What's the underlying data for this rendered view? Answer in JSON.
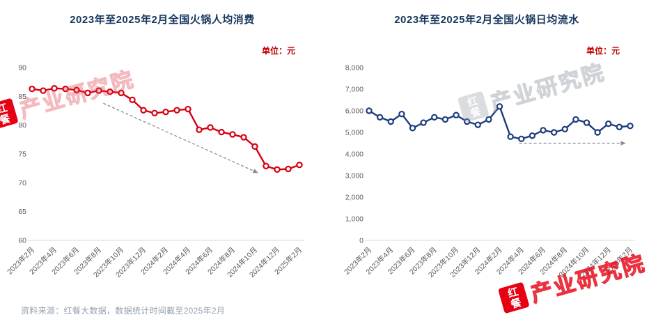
{
  "page": {
    "source_note": "资料来源：红餐大数据，数据统计时间截至2025年2月"
  },
  "watermark": {
    "badge": "红餐",
    "text": "产业研究院"
  },
  "chart_data": [
    {
      "type": "line",
      "title": "2023年至2025年2月全国火锅人均消费",
      "unit_label": "单位：元",
      "line_color": "#d7000f",
      "ylim": [
        60,
        90
      ],
      "yticks": [
        60,
        65,
        70,
        75,
        80,
        85,
        90
      ],
      "ytick_labels": [
        "60",
        "65",
        "70",
        "75",
        "80",
        "85",
        "90"
      ],
      "x": [
        "2023年2月",
        "2023年3月",
        "2023年4月",
        "2023年5月",
        "2023年6月",
        "2023年7月",
        "2023年8月",
        "2023年9月",
        "2023年10月",
        "2023年11月",
        "2023年12月",
        "2024年1月",
        "2024年2月",
        "2024年3月",
        "2024年4月",
        "2024年5月",
        "2024年6月",
        "2024年7月",
        "2024年8月",
        "2024年9月",
        "2024年10月",
        "2024年11月",
        "2024年12月",
        "2025年1月",
        "2025年2月"
      ],
      "x_tick_labels": [
        "2023年2月",
        "2023年4月",
        "2023年6月",
        "2023年8月",
        "2023年10月",
        "2023年12月",
        "2024年2月",
        "2024年4月",
        "2024年6月",
        "2024年8月",
        "2024年10月",
        "2024年12月",
        "2025年2月"
      ],
      "values": [
        86.3,
        86.0,
        86.4,
        86.3,
        86.1,
        85.6,
        86.0,
        85.8,
        85.6,
        84.4,
        82.6,
        82.1,
        82.3,
        82.6,
        82.8,
        79.2,
        79.6,
        78.8,
        78.4,
        77.9,
        76.3,
        72.9,
        72.3,
        72.4,
        73.1
      ],
      "grid": false,
      "legend": "none",
      "trend_arrow": {
        "from_index": 6.4,
        "from_value": 83.8,
        "to_index": 20.3,
        "to_value": 71.7
      }
    },
    {
      "type": "line",
      "title": "2023年至2025年2月全国火锅日均流水",
      "unit_label": "单位：元",
      "line_color": "#1d3d7c",
      "ylim": [
        0,
        8000
      ],
      "yticks": [
        0,
        1000,
        2000,
        3000,
        4000,
        5000,
        6000,
        7000,
        8000
      ],
      "ytick_labels": [
        "0",
        "1,000",
        "2,000",
        "3,000",
        "4,000",
        "5,000",
        "6,000",
        "7,000",
        "8,000"
      ],
      "x": [
        "2023年2月",
        "2023年3月",
        "2023年4月",
        "2023年5月",
        "2023年6月",
        "2023年7月",
        "2023年8月",
        "2023年9月",
        "2023年10月",
        "2023年11月",
        "2023年12月",
        "2024年1月",
        "2024年2月",
        "2024年3月",
        "2024年4月",
        "2024年5月",
        "2024年6月",
        "2024年7月",
        "2024年8月",
        "2024年9月",
        "2024年10月",
        "2024年11月",
        "2024年12月",
        "2025年1月",
        "2025年2月"
      ],
      "x_tick_labels": [
        "2023年2月",
        "2023年4月",
        "2023年6月",
        "2023年8月",
        "2023年10月",
        "2023年12月",
        "2024年2月",
        "2024年4月",
        "2024年6月",
        "2024年8月",
        "2024年10月",
        "2024年12月",
        "2025年2月"
      ],
      "values": [
        6000,
        5700,
        5500,
        5850,
        5200,
        5450,
        5700,
        5600,
        5800,
        5500,
        5350,
        5600,
        6200,
        4800,
        4700,
        4850,
        5100,
        5000,
        5150,
        5600,
        5450,
        5000,
        5400,
        5250,
        5300
      ],
      "grid": false,
      "legend": "none",
      "trend_arrow": {
        "from_index": 13.8,
        "from_value": 4500,
        "to_index": 23.6,
        "to_value": 4500
      }
    }
  ]
}
